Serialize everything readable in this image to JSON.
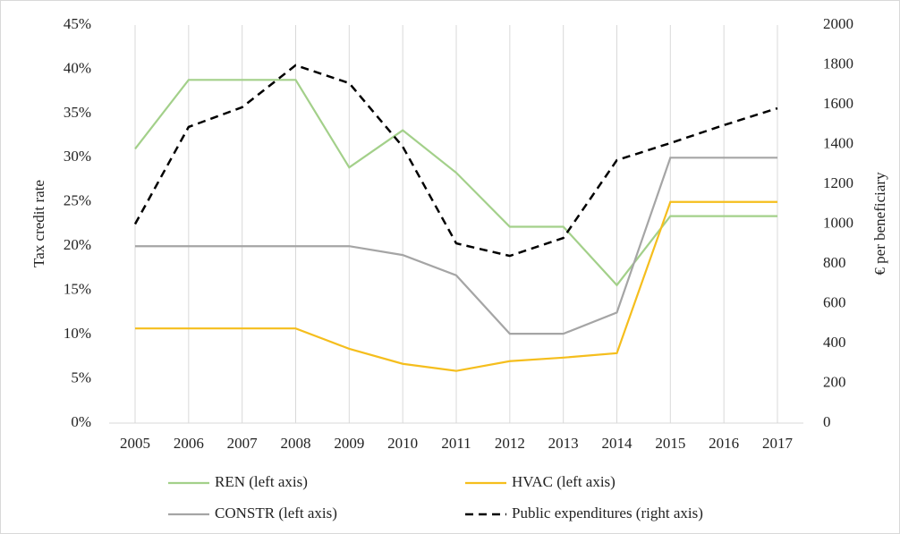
{
  "chart_data": {
    "type": "line",
    "categories": [
      "2005",
      "2006",
      "2007",
      "2008",
      "2009",
      "2010",
      "2011",
      "2012",
      "2013",
      "2014",
      "2015",
      "2016",
      "2017"
    ],
    "ylabel": "Tax credit rate",
    "y2label": "€ per beneficiary",
    "ylim": [
      0,
      45
    ],
    "yticks": [
      {
        "value": 0,
        "label": "0%"
      },
      {
        "value": 5,
        "label": "5%"
      },
      {
        "value": 10,
        "label": "10%"
      },
      {
        "value": 15,
        "label": "15%"
      },
      {
        "value": 20,
        "label": "20%"
      },
      {
        "value": 25,
        "label": "25%"
      },
      {
        "value": 30,
        "label": "30%"
      },
      {
        "value": 35,
        "label": "35%"
      },
      {
        "value": 40,
        "label": "40%"
      },
      {
        "value": 45,
        "label": "45%"
      }
    ],
    "y2lim": [
      0,
      2000
    ],
    "y2ticks": [
      0,
      200,
      400,
      600,
      800,
      1000,
      1200,
      1400,
      1600,
      1800,
      2000
    ],
    "grid": "x",
    "legend": "bottom",
    "series": [
      {
        "name": "REN (left axis)",
        "color": "#a3d08a",
        "dash": "solid",
        "values": [
          31.0,
          38.8,
          38.8,
          38.8,
          28.9,
          33.1,
          28.3,
          22.2,
          22.2,
          15.6,
          23.4,
          23.4,
          23.4
        ]
      },
      {
        "name": "HVAC (left axis)",
        "color": "#f5be1d",
        "dash": "solid",
        "values": [
          10.7,
          10.7,
          10.7,
          10.7,
          8.4,
          6.7,
          5.9,
          7.0,
          7.4,
          7.9,
          25,
          25,
          25
        ]
      },
      {
        "name": "CONSTR (left axis)",
        "color": "#a5a5a5",
        "dash": "solid",
        "values": [
          20,
          20,
          20,
          20,
          20,
          19.0,
          16.7,
          10.1,
          10.1,
          12.5,
          30,
          30,
          30
        ]
      },
      {
        "name": "Public expenditures (right axis)",
        "color": "#000000",
        "dash": "dashed",
        "axis": "y2",
        "values": [
          1000,
          1488,
          1587,
          1798,
          1708,
          1389,
          903,
          840,
          930,
          1321,
          1407,
          1497,
          1582
        ]
      }
    ]
  }
}
